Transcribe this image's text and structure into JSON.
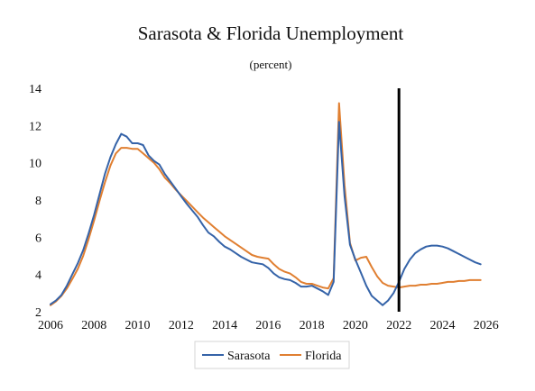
{
  "chart_data": {
    "type": "line",
    "title": "Sarasota & Florida Unemployment",
    "subtitle": "(percent)",
    "xlabel": "",
    "ylabel": "",
    "xlim": [
      2006,
      2026.3
    ],
    "ylim": [
      2,
      14
    ],
    "x_ticks": [
      2006,
      2008,
      2010,
      2012,
      2014,
      2016,
      2018,
      2020,
      2022,
      2024,
      2026
    ],
    "y_ticks": [
      2,
      4,
      6,
      8,
      10,
      12,
      14
    ],
    "grid": false,
    "legend_position": "bottom",
    "vertical_marker_x": 2022.0,
    "series": [
      {
        "name": "Sarasota",
        "color": "#3563a8",
        "points": [
          [
            2006.0,
            2.4
          ],
          [
            2006.25,
            2.6
          ],
          [
            2006.5,
            2.9
          ],
          [
            2006.75,
            3.4
          ],
          [
            2007.0,
            4.0
          ],
          [
            2007.25,
            4.6
          ],
          [
            2007.5,
            5.3
          ],
          [
            2007.75,
            6.2
          ],
          [
            2008.0,
            7.2
          ],
          [
            2008.25,
            8.3
          ],
          [
            2008.5,
            9.4
          ],
          [
            2008.75,
            10.3
          ],
          [
            2009.0,
            11.0
          ],
          [
            2009.25,
            11.55
          ],
          [
            2009.5,
            11.4
          ],
          [
            2009.75,
            11.05
          ],
          [
            2010.0,
            11.05
          ],
          [
            2010.25,
            10.95
          ],
          [
            2010.5,
            10.4
          ],
          [
            2010.75,
            10.1
          ],
          [
            2011.0,
            9.9
          ],
          [
            2011.25,
            9.4
          ],
          [
            2011.5,
            9.0
          ],
          [
            2011.75,
            8.6
          ],
          [
            2012.0,
            8.2
          ],
          [
            2012.25,
            7.8
          ],
          [
            2012.5,
            7.45
          ],
          [
            2012.75,
            7.1
          ],
          [
            2013.0,
            6.65
          ],
          [
            2013.25,
            6.25
          ],
          [
            2013.5,
            6.05
          ],
          [
            2013.75,
            5.75
          ],
          [
            2014.0,
            5.5
          ],
          [
            2014.25,
            5.35
          ],
          [
            2014.5,
            5.15
          ],
          [
            2014.75,
            4.95
          ],
          [
            2015.0,
            4.8
          ],
          [
            2015.25,
            4.65
          ],
          [
            2015.5,
            4.6
          ],
          [
            2015.75,
            4.55
          ],
          [
            2016.0,
            4.35
          ],
          [
            2016.25,
            4.05
          ],
          [
            2016.5,
            3.85
          ],
          [
            2016.75,
            3.75
          ],
          [
            2017.0,
            3.7
          ],
          [
            2017.25,
            3.55
          ],
          [
            2017.5,
            3.35
          ],
          [
            2017.75,
            3.35
          ],
          [
            2018.0,
            3.4
          ],
          [
            2018.25,
            3.25
          ],
          [
            2018.5,
            3.1
          ],
          [
            2018.75,
            2.9
          ],
          [
            2019.0,
            3.6
          ],
          [
            2019.25,
            12.2
          ],
          [
            2019.5,
            8.2
          ],
          [
            2019.75,
            5.6
          ],
          [
            2020.0,
            4.8
          ],
          [
            2020.25,
            4.1
          ],
          [
            2020.5,
            3.4
          ],
          [
            2020.75,
            2.85
          ],
          [
            2021.0,
            2.6
          ],
          [
            2021.25,
            2.35
          ],
          [
            2021.5,
            2.6
          ],
          [
            2021.75,
            3.0
          ],
          [
            2022.0,
            3.6
          ],
          [
            2022.25,
            4.3
          ],
          [
            2022.5,
            4.8
          ],
          [
            2022.75,
            5.15
          ],
          [
            2023.0,
            5.35
          ],
          [
            2023.25,
            5.5
          ],
          [
            2023.5,
            5.55
          ],
          [
            2023.75,
            5.55
          ],
          [
            2024.0,
            5.5
          ],
          [
            2024.25,
            5.4
          ],
          [
            2024.5,
            5.25
          ],
          [
            2024.75,
            5.1
          ],
          [
            2025.0,
            4.95
          ],
          [
            2025.25,
            4.8
          ],
          [
            2025.5,
            4.65
          ],
          [
            2025.75,
            4.55
          ]
        ]
      },
      {
        "name": "Florida",
        "color": "#e07f31",
        "points": [
          [
            2006.0,
            2.35
          ],
          [
            2006.25,
            2.55
          ],
          [
            2006.5,
            2.85
          ],
          [
            2006.75,
            3.25
          ],
          [
            2007.0,
            3.75
          ],
          [
            2007.25,
            4.3
          ],
          [
            2007.5,
            5.0
          ],
          [
            2007.75,
            5.9
          ],
          [
            2008.0,
            6.9
          ],
          [
            2008.25,
            7.95
          ],
          [
            2008.5,
            8.95
          ],
          [
            2008.75,
            9.85
          ],
          [
            2009.0,
            10.5
          ],
          [
            2009.25,
            10.8
          ],
          [
            2009.5,
            10.8
          ],
          [
            2009.75,
            10.75
          ],
          [
            2010.0,
            10.75
          ],
          [
            2010.25,
            10.5
          ],
          [
            2010.5,
            10.25
          ],
          [
            2010.75,
            10.0
          ],
          [
            2011.0,
            9.65
          ],
          [
            2011.25,
            9.2
          ],
          [
            2011.5,
            8.9
          ],
          [
            2011.75,
            8.55
          ],
          [
            2012.0,
            8.25
          ],
          [
            2012.25,
            7.95
          ],
          [
            2012.5,
            7.65
          ],
          [
            2012.75,
            7.35
          ],
          [
            2013.0,
            7.05
          ],
          [
            2013.25,
            6.8
          ],
          [
            2013.5,
            6.55
          ],
          [
            2013.75,
            6.3
          ],
          [
            2014.0,
            6.05
          ],
          [
            2014.25,
            5.85
          ],
          [
            2014.5,
            5.65
          ],
          [
            2014.75,
            5.45
          ],
          [
            2015.0,
            5.25
          ],
          [
            2015.25,
            5.05
          ],
          [
            2015.5,
            4.95
          ],
          [
            2015.75,
            4.9
          ],
          [
            2016.0,
            4.85
          ],
          [
            2016.25,
            4.55
          ],
          [
            2016.5,
            4.3
          ],
          [
            2016.75,
            4.15
          ],
          [
            2017.0,
            4.05
          ],
          [
            2017.25,
            3.85
          ],
          [
            2017.5,
            3.6
          ],
          [
            2017.75,
            3.5
          ],
          [
            2018.0,
            3.5
          ],
          [
            2018.25,
            3.4
          ],
          [
            2018.5,
            3.3
          ],
          [
            2018.75,
            3.25
          ],
          [
            2019.0,
            3.8
          ],
          [
            2019.25,
            13.2
          ],
          [
            2019.5,
            8.8
          ],
          [
            2019.75,
            5.7
          ],
          [
            2020.0,
            4.75
          ],
          [
            2020.25,
            4.9
          ],
          [
            2020.5,
            4.95
          ],
          [
            2020.75,
            4.4
          ],
          [
            2021.0,
            3.9
          ],
          [
            2021.25,
            3.55
          ],
          [
            2021.5,
            3.4
          ],
          [
            2021.75,
            3.35
          ],
          [
            2022.0,
            3.3
          ],
          [
            2022.25,
            3.35
          ],
          [
            2022.5,
            3.4
          ],
          [
            2022.75,
            3.4
          ],
          [
            2023.0,
            3.45
          ],
          [
            2023.25,
            3.45
          ],
          [
            2023.5,
            3.5
          ],
          [
            2023.75,
            3.5
          ],
          [
            2024.0,
            3.55
          ],
          [
            2024.25,
            3.6
          ],
          [
            2024.5,
            3.6
          ],
          [
            2024.75,
            3.65
          ],
          [
            2025.0,
            3.65
          ],
          [
            2025.25,
            3.7
          ],
          [
            2025.5,
            3.7
          ],
          [
            2025.75,
            3.7
          ]
        ]
      }
    ]
  }
}
